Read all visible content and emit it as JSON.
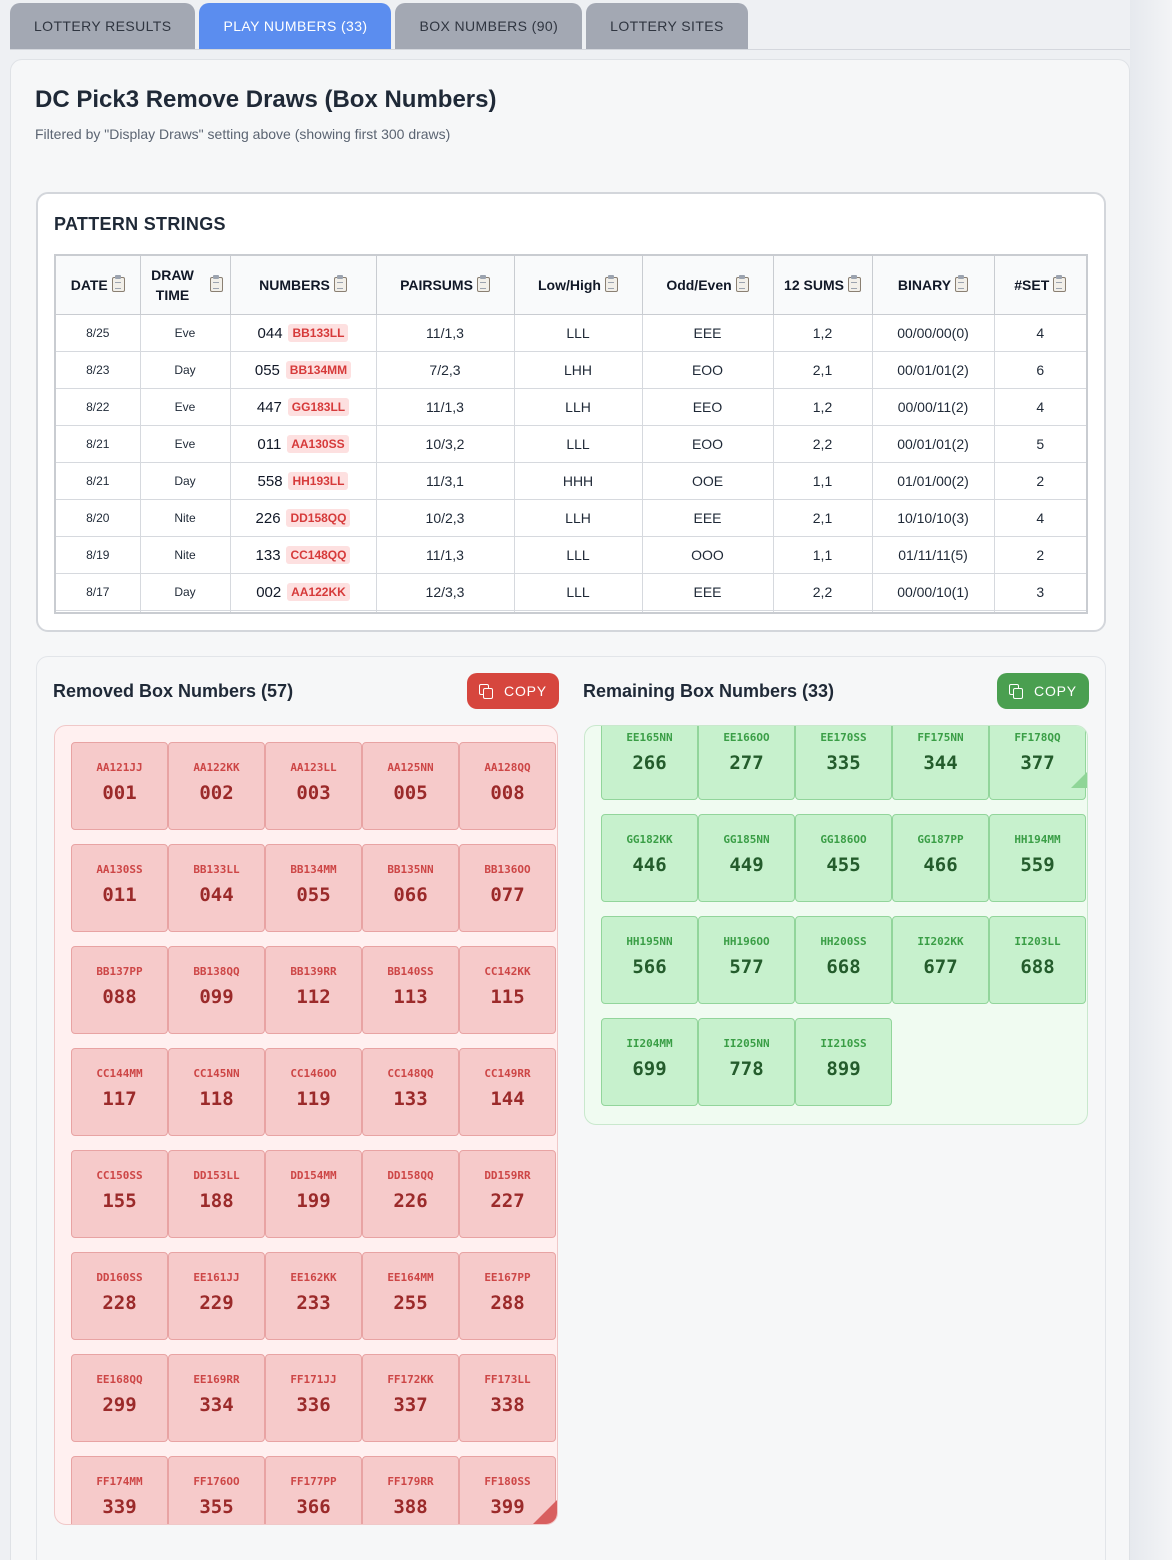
{
  "tabs": [
    {
      "label": "LOTTERY RESULTS",
      "active": false
    },
    {
      "label": "PLAY NUMBERS (33)",
      "active": true
    },
    {
      "label": "BOX NUMBERS (90)",
      "active": false
    },
    {
      "label": "LOTTERY SITES",
      "active": false
    }
  ],
  "page": {
    "title": "DC Pick3 Remove Draws (Box Numbers)",
    "subtitle": "Filtered by \"Display Draws\" setting above (showing first 300 draws)"
  },
  "pattern": {
    "title": "PATTERN STRINGS",
    "columns": [
      "DATE",
      "DRAW TIME",
      "NUMBERS",
      "PAIRSUMS",
      "Low/High",
      "Odd/Even",
      "12 SUMS",
      "BINARY",
      "#SET"
    ],
    "rows": [
      {
        "date": "8/25",
        "time": "Eve",
        "num": "044",
        "code": "BB133LL",
        "pairsums": "11/1,3",
        "lowhigh": "LLL",
        "oddeven": "EEE",
        "sums12": "1,2",
        "binary": "00/00/00(0)",
        "set": "4"
      },
      {
        "date": "8/23",
        "time": "Day",
        "num": "055",
        "code": "BB134MM",
        "pairsums": "7/2,3",
        "lowhigh": "LHH",
        "oddeven": "EOO",
        "sums12": "2,1",
        "binary": "00/01/01(2)",
        "set": "6"
      },
      {
        "date": "8/22",
        "time": "Eve",
        "num": "447",
        "code": "GG183LL",
        "pairsums": "11/1,3",
        "lowhigh": "LLH",
        "oddeven": "EEO",
        "sums12": "1,2",
        "binary": "00/00/11(2)",
        "set": "4"
      },
      {
        "date": "8/21",
        "time": "Eve",
        "num": "011",
        "code": "AA130SS",
        "pairsums": "10/3,2",
        "lowhigh": "LLL",
        "oddeven": "EOO",
        "sums12": "2,2",
        "binary": "00/01/01(2)",
        "set": "5"
      },
      {
        "date": "8/21",
        "time": "Day",
        "num": "558",
        "code": "HH193LL",
        "pairsums": "11/3,1",
        "lowhigh": "HHH",
        "oddeven": "OOE",
        "sums12": "1,1",
        "binary": "01/01/00(2)",
        "set": "2"
      },
      {
        "date": "8/20",
        "time": "Nite",
        "num": "226",
        "code": "DD158QQ",
        "pairsums": "10/2,3",
        "lowhigh": "LLH",
        "oddeven": "EEE",
        "sums12": "2,1",
        "binary": "10/10/10(3)",
        "set": "4"
      },
      {
        "date": "8/19",
        "time": "Nite",
        "num": "133",
        "code": "CC148QQ",
        "pairsums": "11/1,3",
        "lowhigh": "LLL",
        "oddeven": "OOO",
        "sums12": "1,1",
        "binary": "01/11/11(5)",
        "set": "2"
      },
      {
        "date": "8/17",
        "time": "Day",
        "num": "002",
        "code": "AA122KK",
        "pairsums": "12/3,3",
        "lowhigh": "LLL",
        "oddeven": "EEE",
        "sums12": "2,2",
        "binary": "00/00/10(1)",
        "set": "3"
      }
    ]
  },
  "removed": {
    "title": "Removed Box Numbers (57)",
    "copy_label": "COPY",
    "items": [
      {
        "code": "AA121JJ",
        "num": "001"
      },
      {
        "code": "AA122KK",
        "num": "002"
      },
      {
        "code": "AA123LL",
        "num": "003"
      },
      {
        "code": "AA125NN",
        "num": "005"
      },
      {
        "code": "AA128QQ",
        "num": "008"
      },
      {
        "code": "AA130SS",
        "num": "011"
      },
      {
        "code": "BB133LL",
        "num": "044"
      },
      {
        "code": "BB134MM",
        "num": "055"
      },
      {
        "code": "BB135NN",
        "num": "066"
      },
      {
        "code": "BB136OO",
        "num": "077"
      },
      {
        "code": "BB137PP",
        "num": "088"
      },
      {
        "code": "BB138QQ",
        "num": "099"
      },
      {
        "code": "BB139RR",
        "num": "112"
      },
      {
        "code": "BB140SS",
        "num": "113"
      },
      {
        "code": "CC142KK",
        "num": "115"
      },
      {
        "code": "CC144MM",
        "num": "117"
      },
      {
        "code": "CC145NN",
        "num": "118"
      },
      {
        "code": "CC146OO",
        "num": "119"
      },
      {
        "code": "CC148QQ",
        "num": "133"
      },
      {
        "code": "CC149RR",
        "num": "144"
      },
      {
        "code": "CC150SS",
        "num": "155"
      },
      {
        "code": "DD153LL",
        "num": "188"
      },
      {
        "code": "DD154MM",
        "num": "199"
      },
      {
        "code": "DD158QQ",
        "num": "226"
      },
      {
        "code": "DD159RR",
        "num": "227"
      },
      {
        "code": "DD160SS",
        "num": "228"
      },
      {
        "code": "EE161JJ",
        "num": "229"
      },
      {
        "code": "EE162KK",
        "num": "233"
      },
      {
        "code": "EE164MM",
        "num": "255"
      },
      {
        "code": "EE167PP",
        "num": "288"
      },
      {
        "code": "EE168QQ",
        "num": "299"
      },
      {
        "code": "EE169RR",
        "num": "334"
      },
      {
        "code": "FF171JJ",
        "num": "336"
      },
      {
        "code": "FF172KK",
        "num": "337"
      },
      {
        "code": "FF173LL",
        "num": "338"
      },
      {
        "code": "FF174MM",
        "num": "339"
      },
      {
        "code": "FF176OO",
        "num": "355"
      },
      {
        "code": "FF177PP",
        "num": "366"
      },
      {
        "code": "FF179RR",
        "num": "388"
      },
      {
        "code": "FF180SS",
        "num": "399"
      }
    ]
  },
  "remaining": {
    "title": "Remaining Box Numbers (33)",
    "copy_label": "COPY",
    "items": [
      {
        "code": "EE165NN",
        "num": "266"
      },
      {
        "code": "EE166OO",
        "num": "277"
      },
      {
        "code": "EE170SS",
        "num": "335"
      },
      {
        "code": "FF175NN",
        "num": "344"
      },
      {
        "code": "FF178QQ",
        "num": "377"
      },
      {
        "code": "GG182KK",
        "num": "446"
      },
      {
        "code": "GG185NN",
        "num": "449"
      },
      {
        "code": "GG186OO",
        "num": "455"
      },
      {
        "code": "GG187PP",
        "num": "466"
      },
      {
        "code": "HH194MM",
        "num": "559"
      },
      {
        "code": "HH195NN",
        "num": "566"
      },
      {
        "code": "HH196OO",
        "num": "577"
      },
      {
        "code": "HH200SS",
        "num": "668"
      },
      {
        "code": "II202KK",
        "num": "677"
      },
      {
        "code": "II203LL",
        "num": "688"
      },
      {
        "code": "II204MM",
        "num": "699"
      },
      {
        "code": "II205NN",
        "num": "778"
      },
      {
        "code": "II210SS",
        "num": "899"
      }
    ]
  },
  "colors": {
    "tab_active": "#5b8def",
    "copy_red": "#d6463e",
    "copy_green": "#4a9f50"
  }
}
